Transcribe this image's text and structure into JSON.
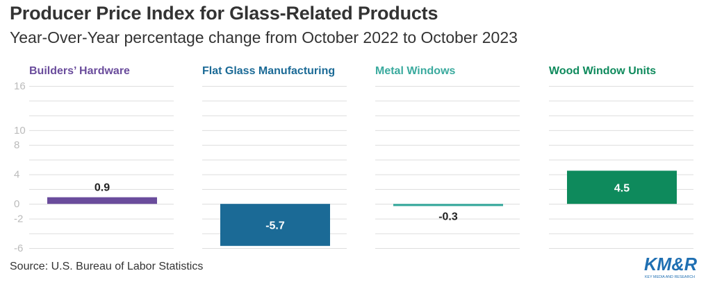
{
  "title": "Producer Price Index for Glass-Related Products",
  "subtitle": "Year-Over-Year percentage change from October 2022 to October 2023",
  "source": "Source: U.S. Bureau of Labor Statistics",
  "logo": {
    "main": "KM&R",
    "tagline": "KEY MEDIA AND RESEARCH"
  },
  "colors": {
    "builders_hardware": "#6a4c9c",
    "flat_glass": "#1b6a96",
    "metal_windows": "#3aaa9e",
    "wood_window_units": "#0e8a5c",
    "grid": "#dddddd",
    "tick": "#bbbbbb",
    "logo": "#1f6fb2"
  },
  "chart_data": {
    "type": "bar",
    "layout": "small-multiples",
    "ylim": [
      -6,
      16
    ],
    "yticks": [
      -6,
      -2,
      0,
      4,
      8,
      10,
      16
    ],
    "grid": true,
    "xlabel": "",
    "ylabel": "",
    "panels": [
      {
        "name": "Builders’ Hardware",
        "value": 0.9,
        "label": "0.9",
        "color_key": "builders_hardware"
      },
      {
        "name": "Flat Glass Manufacturing",
        "value": -5.7,
        "label": "-5.7",
        "color_key": "flat_glass"
      },
      {
        "name": "Metal Windows",
        "value": -0.3,
        "label": "-0.3",
        "color_key": "metal_windows"
      },
      {
        "name": "Wood Window Units",
        "value": 4.5,
        "label": "4.5",
        "color_key": "wood_window_units"
      }
    ]
  }
}
